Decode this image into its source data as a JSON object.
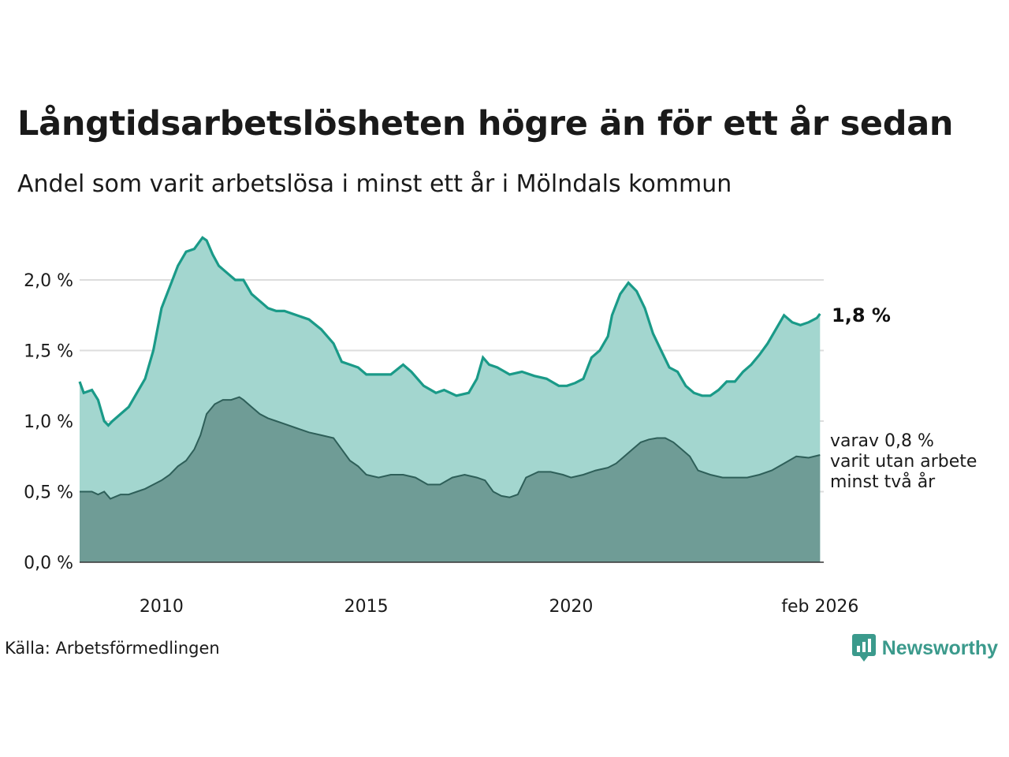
{
  "header": {
    "title": "Långtidsarbetslösheten högre än för ett år sedan",
    "subtitle": "Andel som varit arbetslösa i minst ett år i Mölndals kommun"
  },
  "footer": {
    "source": "Källa: Arbetsförmedlingen",
    "brand": "Newsworthy"
  },
  "colors": {
    "series1_line": "#1a9a88",
    "series1_fill": "#a3d6cf",
    "series2_line": "#2e5f59",
    "series2_fill": "#6f9c96",
    "grid": "#dddddd",
    "brand": "#3b9a8c"
  },
  "chart_data": {
    "type": "area",
    "title": "Långtidsarbetslösheten högre än för ett år sedan",
    "subtitle": "Andel som varit arbetslösa i minst ett år i Mölndals kommun",
    "xlabel": "",
    "ylabel": "",
    "ylim": [
      0,
      2.2
    ],
    "xlim": [
      2008.0,
      2026.17
    ],
    "grid": true,
    "y_ticks": [
      {
        "value": 0.0,
        "label": "0,0 %"
      },
      {
        "value": 0.5,
        "label": "0,5 %"
      },
      {
        "value": 1.0,
        "label": "1,0 %"
      },
      {
        "value": 1.5,
        "label": "1,5 %"
      },
      {
        "value": 2.0,
        "label": "2,0 %"
      }
    ],
    "x_ticks": [
      {
        "value": 2010.0,
        "label": "2010"
      },
      {
        "value": 2015.0,
        "label": "2015"
      },
      {
        "value": 2020.0,
        "label": "2020"
      },
      {
        "value": 2026.08,
        "label": "feb 2026"
      }
    ],
    "series": [
      {
        "name": "Arbetslösa minst ett år",
        "end_label": "1,8 %",
        "x": [
          2008.0,
          2008.1,
          2008.3,
          2008.45,
          2008.6,
          2008.7,
          2008.8,
          2009.0,
          2009.2,
          2009.4,
          2009.6,
          2009.8,
          2010.0,
          2010.2,
          2010.4,
          2010.6,
          2010.8,
          2011.0,
          2011.1,
          2011.25,
          2011.4,
          2011.6,
          2011.8,
          2012.0,
          2012.2,
          2012.4,
          2012.6,
          2012.8,
          2013.0,
          2013.3,
          2013.6,
          2013.9,
          2014.2,
          2014.4,
          2014.6,
          2014.8,
          2015.0,
          2015.3,
          2015.6,
          2015.9,
          2016.1,
          2016.4,
          2016.7,
          2016.9,
          2017.2,
          2017.5,
          2017.7,
          2017.85,
          2018.0,
          2018.2,
          2018.5,
          2018.8,
          2019.1,
          2019.4,
          2019.7,
          2019.9,
          2020.1,
          2020.3,
          2020.5,
          2020.7,
          2020.9,
          2021.0,
          2021.2,
          2021.4,
          2021.6,
          2021.8,
          2022.0,
          2022.2,
          2022.4,
          2022.6,
          2022.8,
          2023.0,
          2023.2,
          2023.4,
          2023.6,
          2023.8,
          2024.0,
          2024.2,
          2024.4,
          2024.6,
          2024.8,
          2025.0,
          2025.2,
          2025.4,
          2025.6,
          2025.8,
          2026.0,
          2026.08
        ],
        "values": [
          1.28,
          1.2,
          1.22,
          1.15,
          1.0,
          0.97,
          1.0,
          1.05,
          1.1,
          1.2,
          1.3,
          1.5,
          1.8,
          1.95,
          2.1,
          2.2,
          2.22,
          2.3,
          2.28,
          2.18,
          2.1,
          2.05,
          2.0,
          2.0,
          1.9,
          1.85,
          1.8,
          1.78,
          1.78,
          1.75,
          1.72,
          1.65,
          1.55,
          1.42,
          1.4,
          1.38,
          1.33,
          1.33,
          1.33,
          1.4,
          1.35,
          1.25,
          1.2,
          1.22,
          1.18,
          1.2,
          1.3,
          1.45,
          1.4,
          1.38,
          1.33,
          1.35,
          1.32,
          1.3,
          1.25,
          1.25,
          1.27,
          1.3,
          1.45,
          1.5,
          1.6,
          1.75,
          1.9,
          1.98,
          1.92,
          1.8,
          1.62,
          1.5,
          1.38,
          1.35,
          1.25,
          1.2,
          1.18,
          1.18,
          1.22,
          1.28,
          1.28,
          1.35,
          1.4,
          1.47,
          1.55,
          1.65,
          1.75,
          1.7,
          1.68,
          1.7,
          1.73,
          1.76
        ]
      },
      {
        "name": "varav minst två år",
        "end_label": [
          "varav 0,8 %",
          "varit utan arbete",
          "minst två år"
        ],
        "x": [
          2008.0,
          2008.3,
          2008.45,
          2008.6,
          2008.75,
          2009.0,
          2009.2,
          2009.4,
          2009.6,
          2009.8,
          2010.0,
          2010.2,
          2010.4,
          2010.6,
          2010.8,
          2010.95,
          2011.1,
          2011.3,
          2011.5,
          2011.7,
          2011.9,
          2012.0,
          2012.2,
          2012.4,
          2012.6,
          2012.8,
          2013.0,
          2013.3,
          2013.6,
          2013.9,
          2014.2,
          2014.4,
          2014.6,
          2014.8,
          2015.0,
          2015.3,
          2015.6,
          2015.9,
          2016.2,
          2016.5,
          2016.8,
          2017.1,
          2017.4,
          2017.7,
          2017.9,
          2018.1,
          2018.3,
          2018.5,
          2018.7,
          2018.9,
          2019.2,
          2019.5,
          2019.8,
          2020.0,
          2020.3,
          2020.6,
          2020.9,
          2021.1,
          2021.3,
          2021.5,
          2021.7,
          2021.9,
          2022.1,
          2022.3,
          2022.5,
          2022.7,
          2022.9,
          2023.1,
          2023.4,
          2023.7,
          2024.0,
          2024.3,
          2024.6,
          2024.9,
          2025.2,
          2025.5,
          2025.8,
          2026.08
        ],
        "values": [
          0.5,
          0.5,
          0.48,
          0.5,
          0.45,
          0.48,
          0.48,
          0.5,
          0.52,
          0.55,
          0.58,
          0.62,
          0.68,
          0.72,
          0.8,
          0.9,
          1.05,
          1.12,
          1.15,
          1.15,
          1.17,
          1.15,
          1.1,
          1.05,
          1.02,
          1.0,
          0.98,
          0.95,
          0.92,
          0.9,
          0.88,
          0.8,
          0.72,
          0.68,
          0.62,
          0.6,
          0.62,
          0.62,
          0.6,
          0.55,
          0.55,
          0.6,
          0.62,
          0.6,
          0.58,
          0.5,
          0.47,
          0.46,
          0.48,
          0.6,
          0.64,
          0.64,
          0.62,
          0.6,
          0.62,
          0.65,
          0.67,
          0.7,
          0.75,
          0.8,
          0.85,
          0.87,
          0.88,
          0.88,
          0.85,
          0.8,
          0.75,
          0.65,
          0.62,
          0.6,
          0.6,
          0.6,
          0.62,
          0.65,
          0.7,
          0.75,
          0.74,
          0.76
        ]
      }
    ]
  }
}
